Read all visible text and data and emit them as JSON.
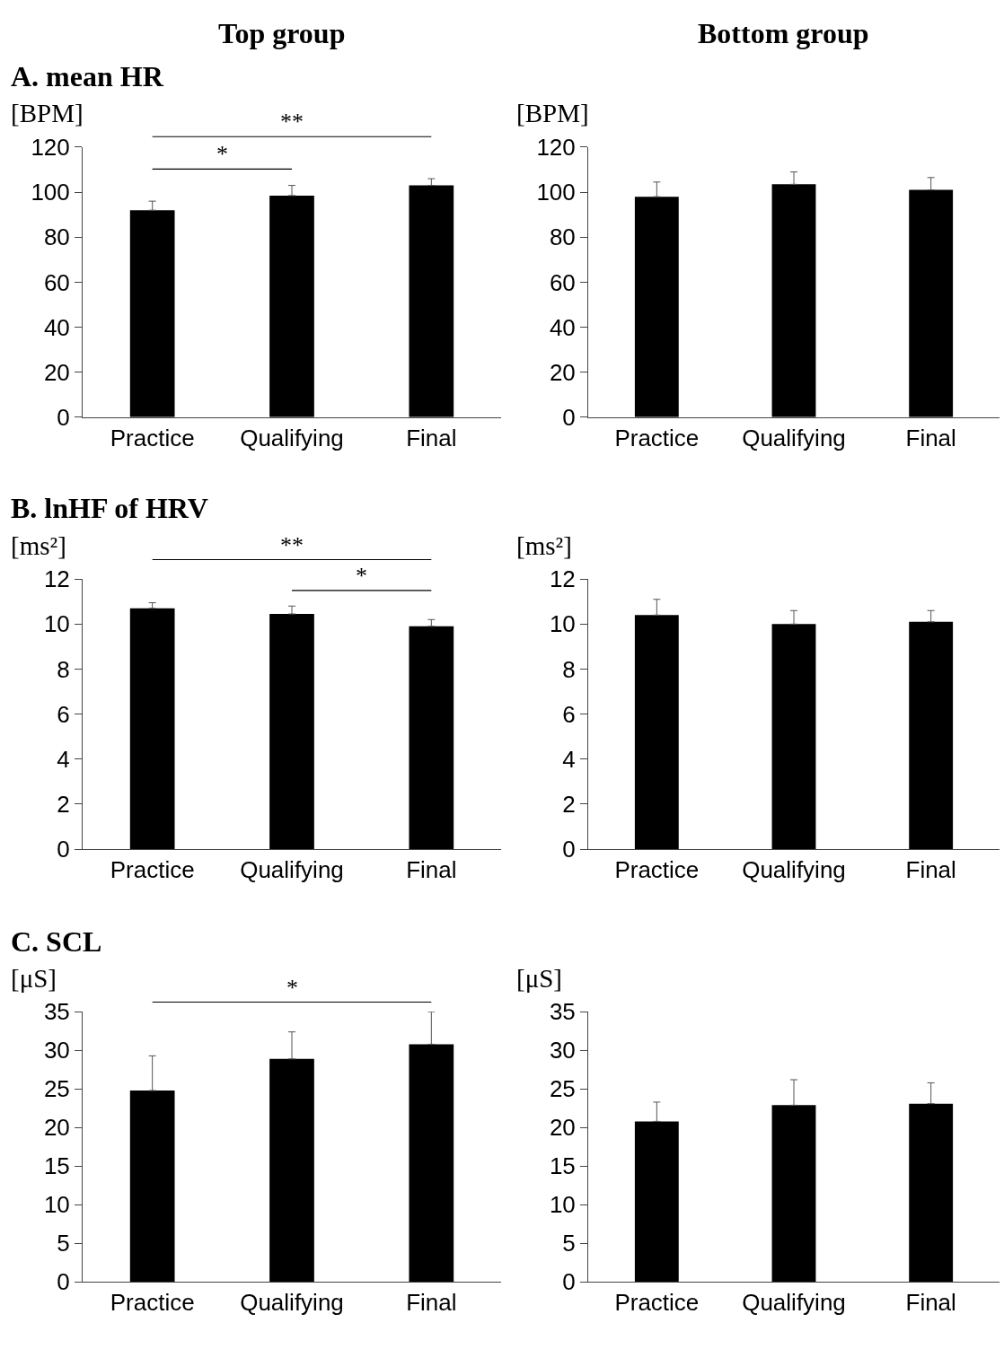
{
  "chart_data": [
    {
      "type": "bar",
      "title": "Top group",
      "subtitle": "A. mean HR",
      "ylabel": "[BPM]",
      "categories": [
        "Practice",
        "Qualifying",
        "Final"
      ],
      "series": [
        {
          "color": "#000000",
          "values": [
            92,
            98.5,
            103
          ],
          "errors": [
            [
              92,
              96
            ],
            [
              98.5,
              103
            ],
            [
              103,
              106
            ]
          ]
        }
      ],
      "ylim": [
        0,
        120
      ],
      "yticks": [
        0,
        20,
        40,
        60,
        80,
        100,
        120
      ],
      "annotations": [
        "*",
        "**"
      ]
    },
    {
      "type": "bar",
      "title": "Bottom group",
      "ylabel": "[BPM]",
      "categories": [
        "Practice",
        "Qualifying",
        "Final"
      ],
      "series": [
        {
          "color": "#000000",
          "values": [
            98,
            103.5,
            101
          ],
          "errors": [
            [
              98,
              104.5
            ],
            [
              103.5,
              109
            ],
            [
              101,
              106.5
            ]
          ]
        }
      ],
      "ylim": [
        0,
        120
      ],
      "yticks": [
        0,
        20,
        40,
        60,
        80,
        100,
        120
      ]
    },
    {
      "type": "bar",
      "title": "B. lnHF of HRV",
      "ylabel": "[ms²]",
      "categories": [
        "Practice",
        "Qualifying",
        "Final"
      ],
      "series": [
        {
          "color": "#000000",
          "values": [
            10.7,
            10.45,
            9.9
          ],
          "errors": [
            [
              10.7,
              10.95
            ],
            [
              10.45,
              10.8
            ],
            [
              9.9,
              10.2
            ]
          ]
        }
      ],
      "ylim": [
        0,
        12
      ],
      "yticks": [
        0,
        2,
        4,
        6,
        8,
        10,
        12
      ],
      "annotations": [
        "**",
        "*"
      ]
    },
    {
      "type": "bar",
      "ylabel": "[ms²]",
      "categories": [
        "Practice",
        "Qualifying",
        "Final"
      ],
      "series": [
        {
          "color": "#000000",
          "values": [
            10.4,
            10.0,
            10.1
          ],
          "errors": [
            [
              10.4,
              11.1
            ],
            [
              10.0,
              10.6
            ],
            [
              10.1,
              10.6
            ]
          ]
        }
      ],
      "ylim": [
        0,
        12
      ],
      "yticks": [
        0,
        2,
        4,
        6,
        8,
        10,
        12
      ]
    },
    {
      "type": "bar",
      "title": "C. SCL",
      "ylabel": "[μS]",
      "categories": [
        "Practice",
        "Qualifying",
        "Final"
      ],
      "series": [
        {
          "color": "#000000",
          "values": [
            24.8,
            28.9,
            30.8
          ],
          "errors": [
            [
              24.8,
              29.3
            ],
            [
              28.9,
              32.4
            ],
            [
              30.8,
              35
            ]
          ]
        }
      ],
      "ylim": [
        0,
        35
      ],
      "yticks": [
        0,
        5,
        10,
        15,
        20,
        25,
        30,
        35
      ],
      "annotations": [
        "*"
      ]
    },
    {
      "type": "bar",
      "ylabel": "[μS]",
      "categories": [
        "Practice",
        "Qualifying",
        "Final"
      ],
      "series": [
        {
          "color": "#000000",
          "values": [
            20.8,
            22.9,
            23.1
          ],
          "errors": [
            [
              20.8,
              23.3
            ],
            [
              22.9,
              26.2
            ],
            [
              23.1,
              25.8
            ]
          ]
        }
      ],
      "ylim": [
        0,
        35
      ],
      "yticks": [
        0,
        5,
        10,
        15,
        20,
        25,
        30,
        35
      ]
    }
  ]
}
